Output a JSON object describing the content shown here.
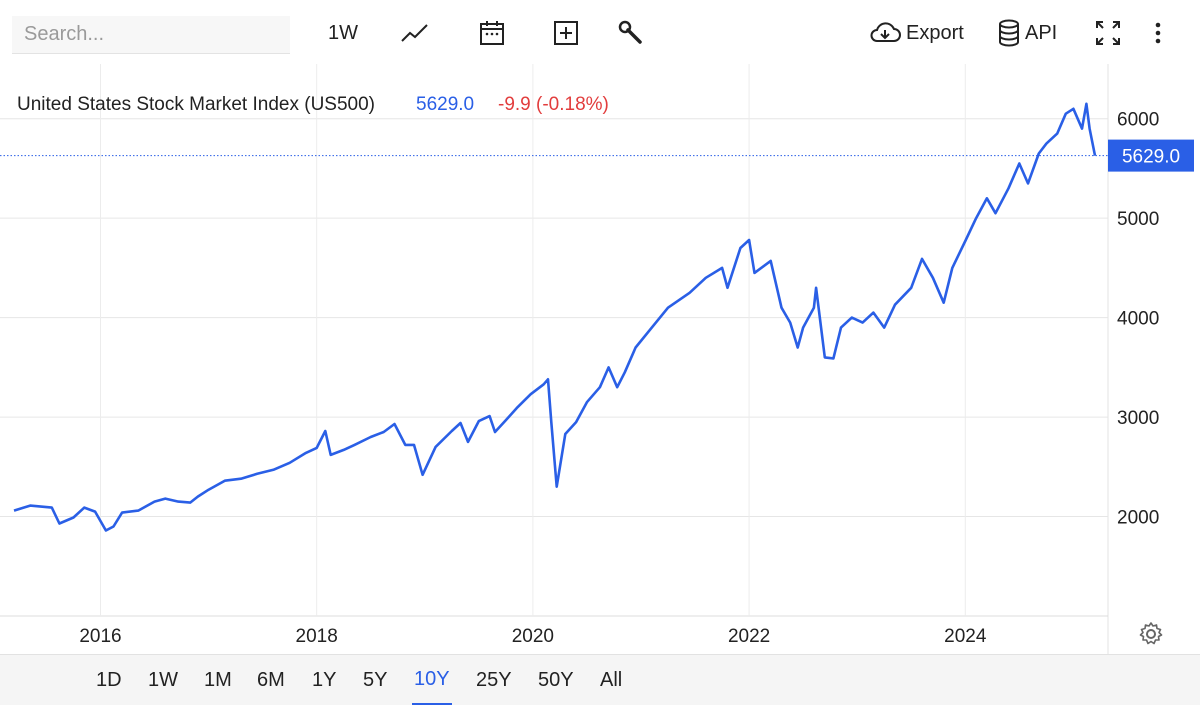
{
  "toolbar": {
    "search_placeholder": "Search...",
    "interval_label": "1W",
    "export_label": "Export",
    "api_label": "API",
    "icons": [
      "line-chart-icon",
      "calendar-icon",
      "plus-box-icon",
      "wrench-icon",
      "cloud-download-icon",
      "database-icon",
      "fullscreen-icon",
      "more-vertical-icon"
    ]
  },
  "chart_data": {
    "type": "line",
    "title": "United States Stock Market Index (US500)",
    "last_value": "5629.0",
    "change": "-9.9 (-0.18%)",
    "price_tag": "5629.0",
    "xlabel": "",
    "ylabel": "",
    "x_ticks": [
      "2016",
      "2018",
      "2020",
      "2022",
      "2024"
    ],
    "y_ticks": [
      "2000",
      "3000",
      "4000",
      "5000",
      "6000"
    ],
    "xlim": [
      2015.2,
      2025.2
    ],
    "ylim": [
      1000,
      6550
    ],
    "grid": true,
    "series": [
      {
        "values": [
          [
            2015.2,
            2060
          ],
          [
            2015.35,
            2110
          ],
          [
            2015.55,
            2090
          ],
          [
            2015.62,
            1930
          ],
          [
            2015.75,
            1990
          ],
          [
            2015.85,
            2090
          ],
          [
            2015.95,
            2050
          ],
          [
            2016.05,
            1860
          ],
          [
            2016.12,
            1900
          ],
          [
            2016.2,
            2040
          ],
          [
            2016.35,
            2060
          ],
          [
            2016.5,
            2150
          ],
          [
            2016.6,
            2180
          ],
          [
            2016.72,
            2150
          ],
          [
            2016.83,
            2140
          ],
          [
            2016.9,
            2200
          ],
          [
            2017.0,
            2270
          ],
          [
            2017.15,
            2360
          ],
          [
            2017.3,
            2380
          ],
          [
            2017.45,
            2430
          ],
          [
            2017.6,
            2470
          ],
          [
            2017.75,
            2540
          ],
          [
            2017.9,
            2640
          ],
          [
            2018.0,
            2690
          ],
          [
            2018.08,
            2860
          ],
          [
            2018.13,
            2620
          ],
          [
            2018.25,
            2670
          ],
          [
            2018.35,
            2720
          ],
          [
            2018.5,
            2800
          ],
          [
            2018.62,
            2850
          ],
          [
            2018.72,
            2930
          ],
          [
            2018.82,
            2720
          ],
          [
            2018.9,
            2720
          ],
          [
            2018.98,
            2420
          ],
          [
            2019.1,
            2700
          ],
          [
            2019.25,
            2860
          ],
          [
            2019.33,
            2940
          ],
          [
            2019.4,
            2750
          ],
          [
            2019.5,
            2960
          ],
          [
            2019.6,
            3010
          ],
          [
            2019.65,
            2850
          ],
          [
            2019.75,
            2970
          ],
          [
            2019.85,
            3090
          ],
          [
            2019.98,
            3230
          ],
          [
            2020.1,
            3330
          ],
          [
            2020.14,
            3380
          ],
          [
            2020.17,
            2950
          ],
          [
            2020.22,
            2300
          ],
          [
            2020.3,
            2830
          ],
          [
            2020.4,
            2950
          ],
          [
            2020.5,
            3150
          ],
          [
            2020.62,
            3300
          ],
          [
            2020.7,
            3500
          ],
          [
            2020.78,
            3300
          ],
          [
            2020.85,
            3450
          ],
          [
            2020.95,
            3700
          ],
          [
            2021.1,
            3900
          ],
          [
            2021.25,
            4100
          ],
          [
            2021.45,
            4250
          ],
          [
            2021.6,
            4400
          ],
          [
            2021.75,
            4500
          ],
          [
            2021.8,
            4300
          ],
          [
            2021.92,
            4700
          ],
          [
            2022.0,
            4780
          ],
          [
            2022.05,
            4450
          ],
          [
            2022.2,
            4570
          ],
          [
            2022.3,
            4100
          ],
          [
            2022.38,
            3950
          ],
          [
            2022.45,
            3700
          ],
          [
            2022.5,
            3900
          ],
          [
            2022.6,
            4100
          ],
          [
            2022.62,
            4300
          ],
          [
            2022.7,
            3600
          ],
          [
            2022.78,
            3590
          ],
          [
            2022.85,
            3900
          ],
          [
            2022.95,
            4000
          ],
          [
            2023.05,
            3950
          ],
          [
            2023.15,
            4050
          ],
          [
            2023.25,
            3900
          ],
          [
            2023.35,
            4130
          ],
          [
            2023.5,
            4300
          ],
          [
            2023.6,
            4590
          ],
          [
            2023.7,
            4400
          ],
          [
            2023.8,
            4150
          ],
          [
            2023.88,
            4500
          ],
          [
            2024.0,
            4770
          ],
          [
            2024.1,
            5000
          ],
          [
            2024.2,
            5200
          ],
          [
            2024.28,
            5050
          ],
          [
            2024.4,
            5300
          ],
          [
            2024.5,
            5550
          ],
          [
            2024.58,
            5350
          ],
          [
            2024.68,
            5650
          ],
          [
            2024.75,
            5750
          ],
          [
            2024.85,
            5850
          ],
          [
            2024.93,
            6050
          ],
          [
            2025.0,
            6100
          ],
          [
            2025.08,
            5900
          ],
          [
            2025.12,
            6150
          ],
          [
            2025.15,
            5900
          ],
          [
            2025.2,
            5629
          ]
        ],
        "color": "#2a5fe6"
      }
    ],
    "change_color": "#e23d3d",
    "accent_color": "#2a5fe6",
    "price_line_style": "dotted"
  },
  "ranges": [
    "1D",
    "1W",
    "1M",
    "6M",
    "1Y",
    "5Y",
    "10Y",
    "25Y",
    "50Y",
    "All"
  ],
  "active_range": "10Y"
}
